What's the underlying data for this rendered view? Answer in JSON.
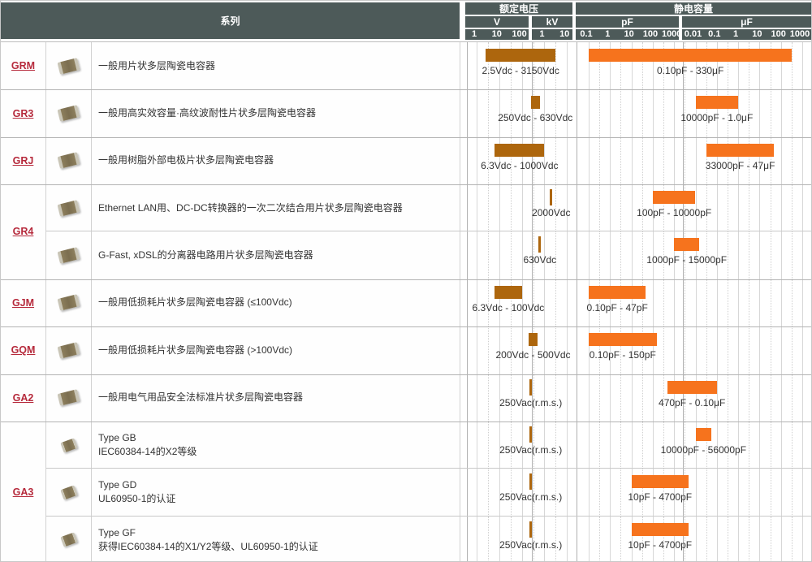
{
  "colors": {
    "header_bg": "#4d5a59",
    "voltage_bar": "#ad660d",
    "capacitance_bar": "#f6731d",
    "series_link": "#b62a3c"
  },
  "header": {
    "series": "系列",
    "groups": [
      {
        "label": "额定电压"
      },
      {
        "label": "静电容量"
      }
    ],
    "units": [
      {
        "label": "V"
      },
      {
        "label": "kV"
      },
      {
        "label": "pF"
      },
      {
        "label": "μF"
      }
    ],
    "ticks": {
      "voltage": [
        {
          "v": 1,
          "t": "1"
        },
        {
          "v": 10,
          "t": "10"
        },
        {
          "v": 100,
          "t": "100"
        },
        {
          "v": 1000,
          "t": "1"
        },
        {
          "v": 10000,
          "t": "10"
        }
      ],
      "capacitance": [
        {
          "pf": 0.1,
          "t": "0.1"
        },
        {
          "pf": 1,
          "t": "1"
        },
        {
          "pf": 10,
          "t": "10"
        },
        {
          "pf": 100,
          "t": "100"
        },
        {
          "pf": 1000,
          "t": "1000"
        },
        {
          "pf": 10000,
          "t": "0.01"
        },
        {
          "pf": 100000,
          "t": "0.1"
        },
        {
          "pf": 1000000,
          "t": "1"
        },
        {
          "pf": 10000000,
          "t": "10"
        },
        {
          "pf": 100000000,
          "t": "100"
        },
        {
          "pf": 1000000000,
          "t": "1000"
        }
      ]
    }
  },
  "groups": [
    {
      "series": "GRM",
      "rows": [
        {
          "chip": "large",
          "descriptions": [
            "一般用片状多层陶瓷电容器"
          ],
          "voltage": {
            "min": 2.5,
            "max": 3150,
            "label": "2.5Vdc - 3150Vdc"
          },
          "capacitance": {
            "min_pf": 0.1,
            "max_pf": 330000000,
            "label": "0.10pF - 330μF"
          }
        }
      ]
    },
    {
      "series": "GR3",
      "rows": [
        {
          "chip": "large",
          "descriptions": [
            "一般用高实效容量·高纹波耐性片状多层陶瓷电容器"
          ],
          "voltage": {
            "min": 250,
            "max": 630,
            "label": "250Vdc - 630Vdc"
          },
          "capacitance": {
            "min_pf": 10000,
            "max_pf": 1000000,
            "label": "10000pF - 1.0μF"
          }
        }
      ]
    },
    {
      "series": "GRJ",
      "rows": [
        {
          "chip": "large",
          "descriptions": [
            "一般用树脂外部电极片状多层陶瓷电容器"
          ],
          "voltage": {
            "min": 6.3,
            "max": 1000,
            "label": "6.3Vdc - 1000Vdc"
          },
          "capacitance": {
            "min_pf": 33000,
            "max_pf": 47000000,
            "label": "33000pF - 47μF"
          }
        }
      ]
    },
    {
      "series": "GR4",
      "rows": [
        {
          "chip": "large",
          "descriptions": [
            "Ethernet LAN用、DC-DC转换器的一次二次结合用片状多层陶瓷电容器"
          ],
          "voltage": {
            "min": 2000,
            "max": 2000,
            "label": "2000Vdc"
          },
          "capacitance": {
            "min_pf": 100,
            "max_pf": 10000,
            "label": "100pF - 10000pF"
          }
        },
        {
          "chip": "large",
          "descriptions": [
            "G-Fast, xDSL的分离器电路用片状多层陶瓷电容器"
          ],
          "voltage": {
            "min": 630,
            "max": 630,
            "label": "630Vdc"
          },
          "capacitance": {
            "min_pf": 1000,
            "max_pf": 15000,
            "label": "1000pF - 15000pF"
          }
        }
      ]
    },
    {
      "series": "GJM",
      "rows": [
        {
          "chip": "large",
          "descriptions": [
            "一般用低损耗片状多层陶瓷电容器 (≤100Vdc)"
          ],
          "voltage": {
            "min": 6.3,
            "max": 100,
            "label": "6.3Vdc - 100Vdc"
          },
          "capacitance": {
            "min_pf": 0.1,
            "max_pf": 47,
            "label": "0.10pF - 47pF"
          }
        }
      ]
    },
    {
      "series": "GQM",
      "rows": [
        {
          "chip": "large",
          "descriptions": [
            "一般用低损耗片状多层陶瓷电容器 (>100Vdc)"
          ],
          "voltage": {
            "min": 200,
            "max": 500,
            "label": "200Vdc - 500Vdc"
          },
          "capacitance": {
            "min_pf": 0.1,
            "max_pf": 150,
            "label": "0.10pF - 150pF"
          }
        }
      ]
    },
    {
      "series": "GA2",
      "rows": [
        {
          "chip": "large",
          "descriptions": [
            "一般用电气用品安全法标准片状多层陶瓷电容器"
          ],
          "voltage": {
            "min": 250,
            "max": 250,
            "label": "250Vac(r.m.s.)"
          },
          "capacitance": {
            "min_pf": 470,
            "max_pf": 100000,
            "label": "470pF - 0.10μF"
          }
        }
      ]
    },
    {
      "series": "GA3",
      "rows": [
        {
          "chip": "small",
          "descriptions": [
            "Type GB",
            "IEC60384-14的X2等级"
          ],
          "voltage": {
            "min": 250,
            "max": 250,
            "label": "250Vac(r.m.s.)"
          },
          "capacitance": {
            "min_pf": 10000,
            "max_pf": 56000,
            "label": "10000pF - 56000pF"
          }
        },
        {
          "chip": "small",
          "descriptions": [
            "Type GD",
            "UL60950-1的认证"
          ],
          "voltage": {
            "min": 250,
            "max": 250,
            "label": "250Vac(r.m.s.)"
          },
          "capacitance": {
            "min_pf": 10,
            "max_pf": 4700,
            "label": "10pF - 4700pF"
          }
        },
        {
          "chip": "small",
          "descriptions": [
            "Type GF",
            "获得IEC60384-14的X1/Y2等级、UL60950-1的认证"
          ],
          "voltage": {
            "min": 250,
            "max": 250,
            "label": "250Vac(r.m.s.)"
          },
          "capacitance": {
            "min_pf": 10,
            "max_pf": 4700,
            "label": "10pF - 4700pF"
          }
        }
      ]
    }
  ],
  "chart_data": {
    "type": "bar",
    "subtype": "horizontal-log-range-bars",
    "title": "",
    "axes": [
      {
        "name": "额定电压",
        "scale": "log",
        "unit_sections": [
          "V",
          "kV"
        ],
        "ticks_V": [
          1,
          10,
          100
        ],
        "ticks_kV": [
          1,
          10
        ],
        "range_V": [
          1,
          10000
        ]
      },
      {
        "name": "静电容量",
        "scale": "log",
        "unit_sections": [
          "pF",
          "μF"
        ],
        "ticks_pF": [
          0.1,
          1,
          10,
          100,
          1000
        ],
        "ticks_uF": [
          0.01,
          0.1,
          1,
          10,
          100,
          1000
        ],
        "range_pF": [
          0.1,
          1000000000
        ]
      }
    ],
    "grid": "log decades solid, half-decades dotted",
    "legend": "none",
    "rows": [
      {
        "series": "GRM",
        "description": "一般用片状多层陶瓷电容器",
        "voltage_v": [
          2.5,
          3150
        ],
        "voltage_label": "2.5Vdc - 3150Vdc",
        "capacitance_pf": [
          0.1,
          330000000
        ],
        "capacitance_label": "0.10pF - 330μF"
      },
      {
        "series": "GR3",
        "description": "一般用高实效容量·高纹波耐性片状多层陶瓷电容器",
        "voltage_v": [
          250,
          630
        ],
        "voltage_label": "250Vdc - 630Vdc",
        "capacitance_pf": [
          10000,
          1000000
        ],
        "capacitance_label": "10000pF - 1.0μF"
      },
      {
        "series": "GRJ",
        "description": "一般用树脂外部电极片状多层陶瓷电容器",
        "voltage_v": [
          6.3,
          1000
        ],
        "voltage_label": "6.3Vdc - 1000Vdc",
        "capacitance_pf": [
          33000,
          47000000
        ],
        "capacitance_label": "33000pF - 47μF"
      },
      {
        "series": "GR4",
        "description": "Ethernet LAN用、DC-DC转换器的一次二次结合用片状多层陶瓷电容器",
        "voltage_v": [
          2000,
          2000
        ],
        "voltage_label": "2000Vdc",
        "capacitance_pf": [
          100,
          10000
        ],
        "capacitance_label": "100pF - 10000pF"
      },
      {
        "series": "GR4",
        "description": "G-Fast, xDSL的分离器电路用片状多层陶瓷电容器",
        "voltage_v": [
          630,
          630
        ],
        "voltage_label": "630Vdc",
        "capacitance_pf": [
          1000,
          15000
        ],
        "capacitance_label": "1000pF - 15000pF"
      },
      {
        "series": "GJM",
        "description": "一般用低损耗片状多层陶瓷电容器 (≤100Vdc)",
        "voltage_v": [
          6.3,
          100
        ],
        "voltage_label": "6.3Vdc - 100Vdc",
        "capacitance_pf": [
          0.1,
          47
        ],
        "capacitance_label": "0.10pF - 47pF"
      },
      {
        "series": "GQM",
        "description": "一般用低损耗片状多层陶瓷电容器 (>100Vdc)",
        "voltage_v": [
          200,
          500
        ],
        "voltage_label": "200Vdc - 500Vdc",
        "capacitance_pf": [
          0.1,
          150
        ],
        "capacitance_label": "0.10pF - 150pF"
      },
      {
        "series": "GA2",
        "description": "一般用电气用品安全法标准片状多层陶瓷电容器",
        "voltage_v": [
          250,
          250
        ],
        "voltage_label": "250Vac(r.m.s.)",
        "capacitance_pf": [
          470,
          100000
        ],
        "capacitance_label": "470pF - 0.10μF"
      },
      {
        "series": "GA3",
        "description": "Type GB IEC60384-14的X2等级",
        "voltage_v": [
          250,
          250
        ],
        "voltage_label": "250Vac(r.m.s.)",
        "capacitance_pf": [
          10000,
          56000
        ],
        "capacitance_label": "10000pF - 56000pF"
      },
      {
        "series": "GA3",
        "description": "Type GD UL60950-1的认证",
        "voltage_v": [
          250,
          250
        ],
        "voltage_label": "250Vac(r.m.s.)",
        "capacitance_pf": [
          10,
          4700
        ],
        "capacitance_label": "10pF - 4700pF"
      },
      {
        "series": "GA3",
        "description": "Type GF 获得IEC60384-14的X1/Y2等级、UL60950-1的认证",
        "voltage_v": [
          250,
          250
        ],
        "voltage_label": "250Vac(r.m.s.)",
        "capacitance_pf": [
          10,
          4700
        ],
        "capacitance_label": "10pF - 4700pF"
      }
    ]
  }
}
